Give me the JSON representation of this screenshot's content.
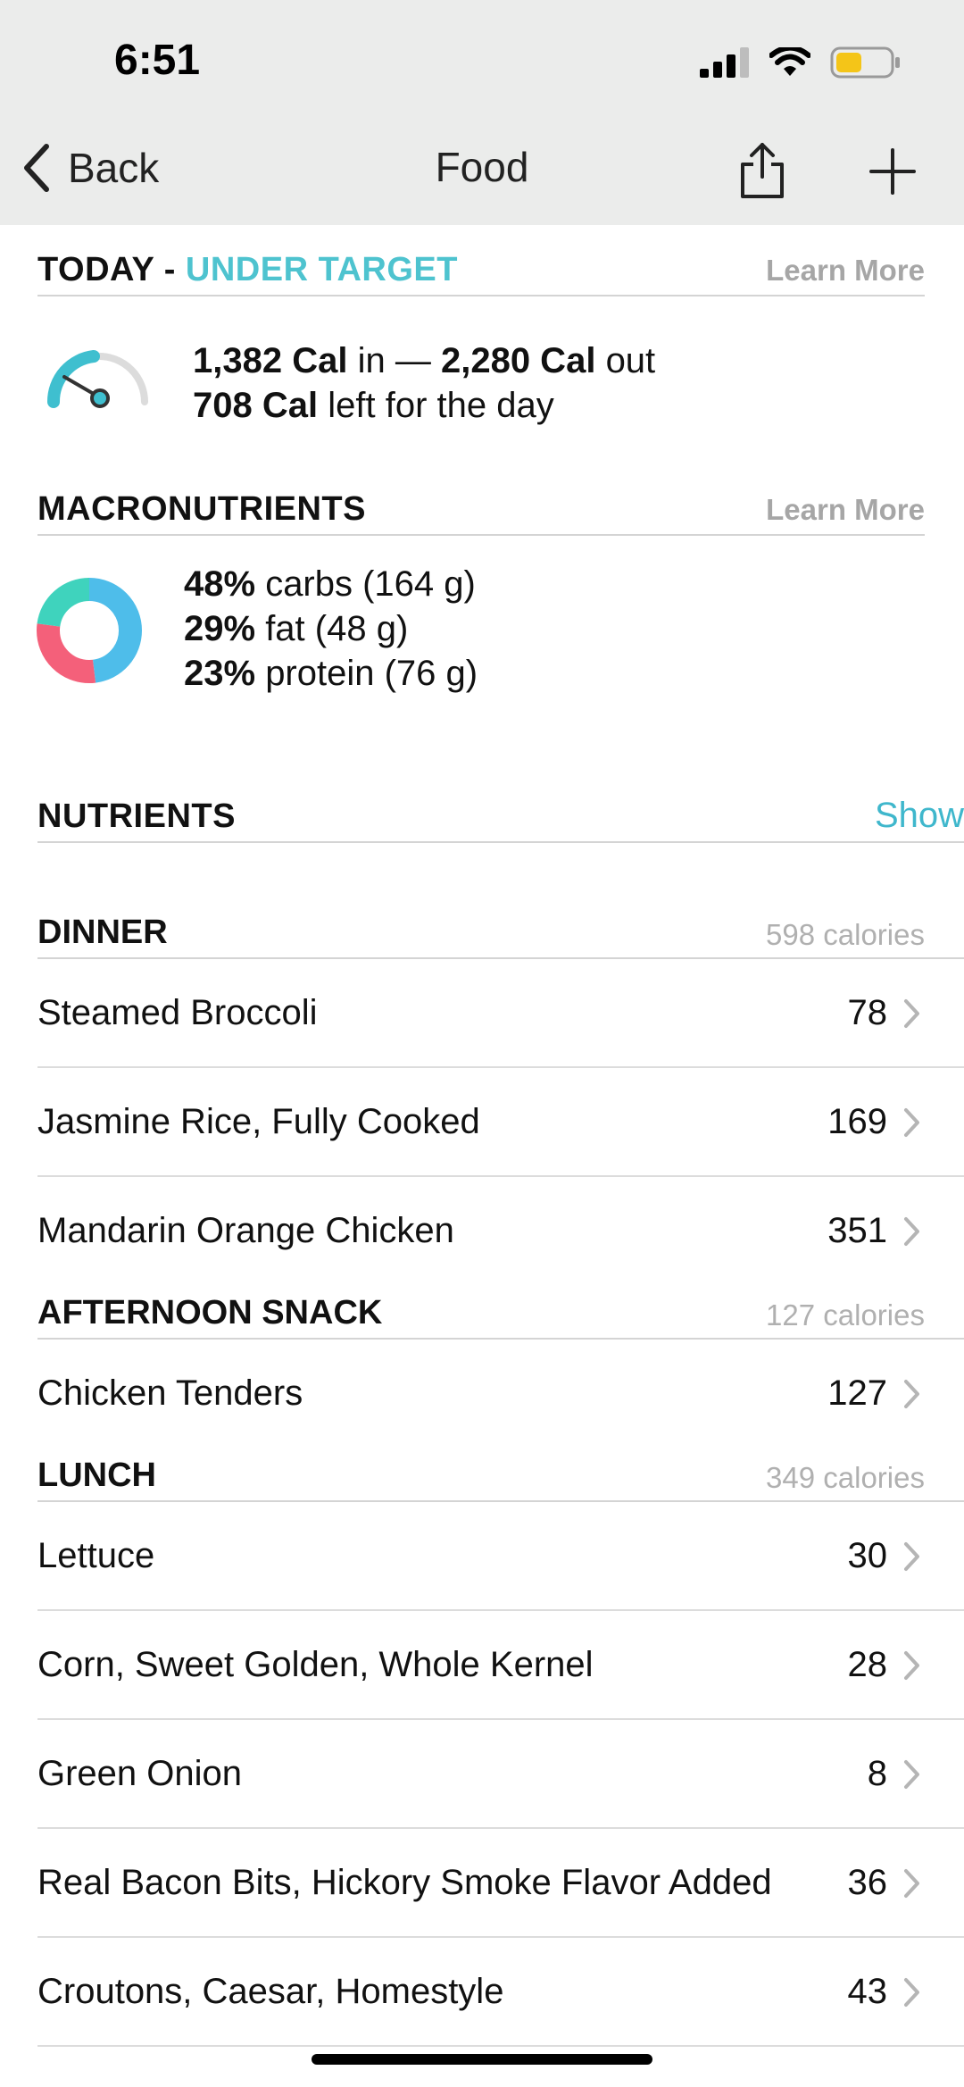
{
  "status_bar": {
    "time": "6:51"
  },
  "nav": {
    "back_label": "Back",
    "title": "Food",
    "share_icon": "share-icon",
    "add_icon": "plus-icon"
  },
  "today": {
    "title": "TODAY",
    "sep": "-",
    "status": "UNDER TARGET",
    "learn_more": "Learn More",
    "cal_in": "1,382 Cal",
    "in_word": "in —",
    "cal_out": "2,280 Cal",
    "out_word": "out",
    "cal_left": "708 Cal",
    "left_text": "left for the day"
  },
  "macronutrients": {
    "title": "MACRONUTRIENTS",
    "learn_more": "Learn More",
    "items": [
      {
        "pct": "48%",
        "label": "carbs (164 g)",
        "color": "#4ebdea"
      },
      {
        "pct": "29%",
        "label": "fat (48 g)",
        "color": "#f4607a"
      },
      {
        "pct": "23%",
        "label": "protein (76 g)",
        "color": "#3fd3bd"
      }
    ]
  },
  "nutrients": {
    "title": "NUTRIENTS",
    "show_label": "Show"
  },
  "meals": [
    {
      "title": "DINNER",
      "calories": "598 calories",
      "items": [
        {
          "name": "Steamed Broccoli",
          "cal": "78"
        },
        {
          "name": "Jasmine Rice, Fully Cooked",
          "cal": "169"
        },
        {
          "name": "Mandarin Orange Chicken",
          "cal": "351"
        }
      ]
    },
    {
      "title": "AFTERNOON SNACK",
      "calories": "127 calories",
      "items": [
        {
          "name": "Chicken Tenders",
          "cal": "127"
        }
      ]
    },
    {
      "title": "LUNCH",
      "calories": "349 calories",
      "items": [
        {
          "name": "Lettuce",
          "cal": "30"
        },
        {
          "name": "Corn, Sweet Golden, Whole Kernel",
          "cal": "28"
        },
        {
          "name": "Green Onion",
          "cal": "8"
        },
        {
          "name": "Real Bacon Bits, Hickory Smoke Flavor Added",
          "cal": "36"
        },
        {
          "name": "Croutons, Caesar, Homestyle",
          "cal": "43"
        }
      ]
    }
  ]
}
